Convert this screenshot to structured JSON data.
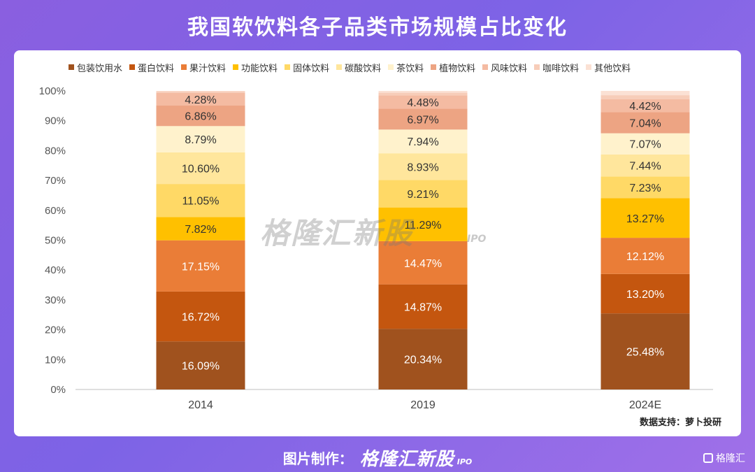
{
  "title": "我国软饮料各子品类市场规模占比变化",
  "source": "数据支持：萝卜投研",
  "watermark": {
    "brand": "格隆汇新股",
    "sub": "IPO"
  },
  "footer": {
    "label": "图片制作：",
    "brand": "格隆汇新股",
    "sub": "IPO",
    "corner": "格隆汇"
  },
  "chart_data": {
    "type": "bar",
    "stacked": true,
    "categories": [
      "2014",
      "2019",
      "2024E"
    ],
    "y_ticks": [
      "0%",
      "10%",
      "20%",
      "30%",
      "40%",
      "50%",
      "60%",
      "70%",
      "80%",
      "90%",
      "100%"
    ],
    "ylim": [
      0,
      100
    ],
    "legend_position": "top",
    "series": [
      {
        "name": "包装饮用水",
        "color": "#a0521e",
        "values": [
          16.09,
          20.34,
          25.48
        ],
        "labels": [
          "16.09%",
          "20.34%",
          "25.48%"
        ]
      },
      {
        "name": "蛋白饮料",
        "color": "#c4560f",
        "values": [
          16.72,
          14.87,
          13.2
        ],
        "labels": [
          "16.72%",
          "14.87%",
          "13.20%"
        ]
      },
      {
        "name": "果汁饮料",
        "color": "#ea7d37",
        "values": [
          17.15,
          14.47,
          12.12
        ],
        "labels": [
          "17.15%",
          "14.47%",
          "12.12%"
        ]
      },
      {
        "name": "功能饮料",
        "color": "#ffc000",
        "values": [
          7.82,
          11.29,
          13.27
        ],
        "labels": [
          "7.82%",
          "11.29%",
          "13.27%"
        ]
      },
      {
        "name": "固体饮料",
        "color": "#ffd966",
        "values": [
          11.05,
          9.21,
          7.23
        ],
        "labels": [
          "11.05%",
          "9.21%",
          "7.23%"
        ]
      },
      {
        "name": "碳酸饮料",
        "color": "#ffe69c",
        "values": [
          10.6,
          8.93,
          7.44
        ],
        "labels": [
          "10.60%",
          "8.93%",
          "7.44%"
        ]
      },
      {
        "name": "茶饮料",
        "color": "#fff2cc",
        "values": [
          8.79,
          7.94,
          7.07
        ],
        "labels": [
          "8.79%",
          "7.94%",
          "7.07%"
        ]
      },
      {
        "name": "植物饮料",
        "color": "#eda483",
        "values": [
          6.86,
          6.97,
          7.04
        ],
        "labels": [
          "6.86%",
          "6.97%",
          "7.04%"
        ]
      },
      {
        "name": "风味饮料",
        "color": "#f4bba2",
        "values": [
          4.28,
          4.48,
          4.42
        ],
        "labels": [
          "4.28%",
          "4.48%",
          "4.42%"
        ]
      },
      {
        "name": "咖啡饮料",
        "color": "#f7cdb9",
        "values": [
          0.5,
          0.9,
          1.3
        ],
        "labels": [
          "",
          "",
          ""
        ]
      },
      {
        "name": "其他饮料",
        "color": "#fbe1d4",
        "values": [
          0.6,
          0.6,
          1.43
        ],
        "labels": [
          "",
          "",
          ""
        ]
      }
    ]
  }
}
